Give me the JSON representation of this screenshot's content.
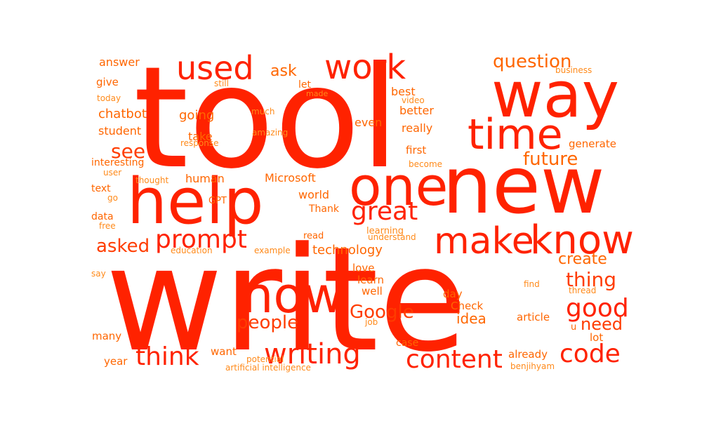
{
  "palette": {
    "red": "#ff2200",
    "orange_red": "#ff3c00",
    "orange": "#ff6600",
    "light_orange": "#ff8a1a"
  },
  "words": [
    "tool",
    "write",
    "new",
    "one",
    "help",
    "way",
    "now",
    "know",
    "make",
    "time",
    "used",
    "work",
    "writing",
    "content",
    "good",
    "code",
    "think",
    "prompt",
    "great",
    "people",
    "Google",
    "see",
    "question",
    "asked",
    "future",
    "thing",
    "need",
    "create",
    "technology",
    "ask",
    "idea",
    "going",
    "chatbot",
    "student",
    "human",
    "take",
    "Microsoft",
    "best",
    "really",
    "better",
    "even",
    "answer",
    "give",
    "text",
    "data",
    "world",
    "Thank",
    "GPT",
    "first",
    "generate",
    "interesting",
    "love",
    "learn",
    "well",
    "day",
    "Check",
    "article",
    "u",
    "lot",
    "already",
    "benjihyam",
    "case",
    "year",
    "many",
    "want",
    "artificial intelligence",
    "potential",
    "job",
    "find",
    "thread",
    "say",
    "education",
    "example",
    "understand",
    "learning",
    "read",
    "become",
    "thought",
    "user",
    "go",
    "free",
    "response",
    "amazing",
    "much",
    "still",
    "let",
    "made",
    "video",
    "today",
    "business"
  ]
}
